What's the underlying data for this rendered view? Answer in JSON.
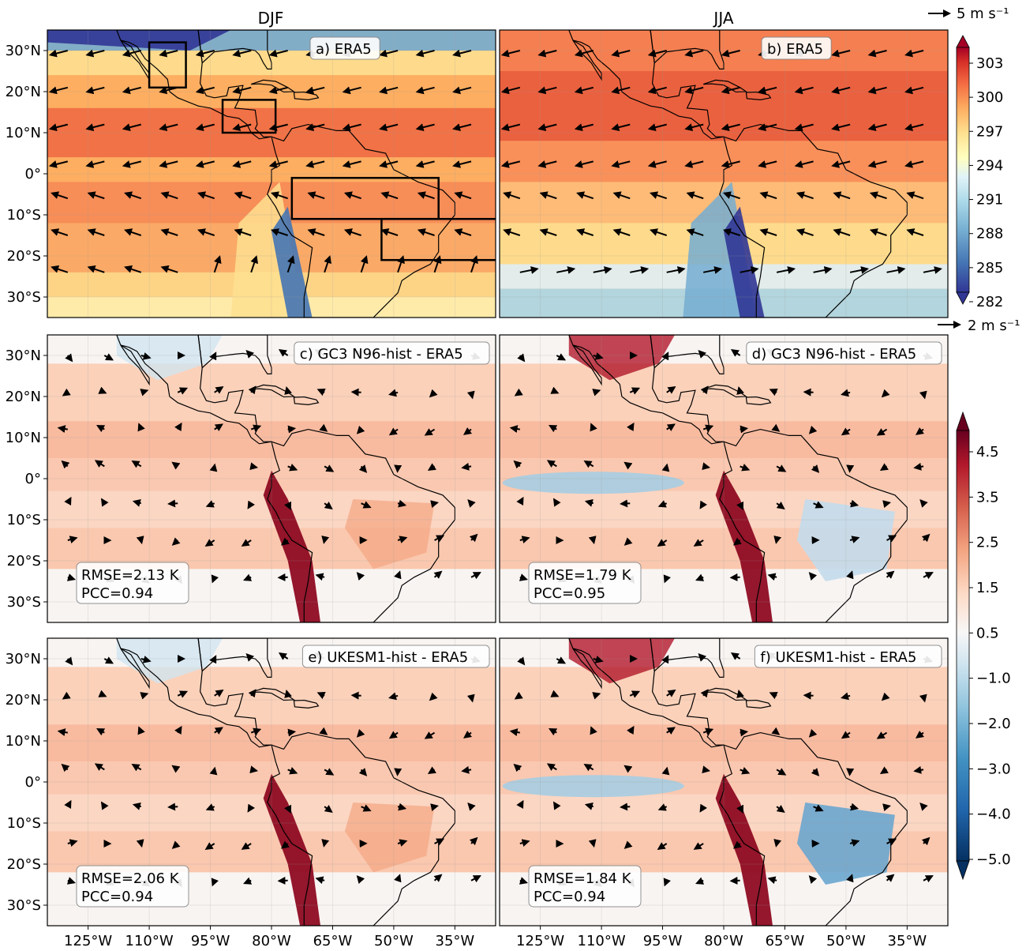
{
  "chart_data": {
    "type": "heatmap",
    "columns": [
      "DJF",
      "JJA"
    ],
    "y_ticks": [
      "30°N",
      "20°N",
      "10°N",
      "0°",
      "10°S",
      "20°S",
      "30°S"
    ],
    "x_ticks": [
      "125°W",
      "110°W",
      "95°W",
      "80°W",
      "65°W",
      "50°W",
      "35°W"
    ],
    "x_range": [
      -135,
      -25
    ],
    "y_range": [
      -35,
      35
    ],
    "panels": [
      {
        "label": "a) ERA5",
        "column": "DJF",
        "row": 1
      },
      {
        "label": "b) ERA5",
        "column": "JJA",
        "row": 1
      },
      {
        "label": "c) GC3 N96-hist - ERA5",
        "column": "DJF",
        "row": 2,
        "rmse": "RMSE=2.13 K",
        "pcc": "PCC=0.94"
      },
      {
        "label": "d) GC3 N96-hist - ERA5",
        "column": "JJA",
        "row": 2,
        "rmse": "RMSE=1.79 K",
        "pcc": "PCC=0.95"
      },
      {
        "label": "e) UKESM1-hist - ERA5",
        "column": "DJF",
        "row": 3,
        "rmse": "RMSE=2.06 K",
        "pcc": "PCC=0.94"
      },
      {
        "label": "f) UKESM1-hist - ERA5",
        "column": "JJA",
        "row": 3,
        "rmse": "RMSE=1.84 K",
        "pcc": "PCC=0.94"
      }
    ],
    "colorbar_top": {
      "ticks": [
        "303",
        "300",
        "297",
        "294",
        "291",
        "288",
        "285",
        "282"
      ],
      "colormap": "RdYlBu_r",
      "range": [
        282,
        304.5
      ],
      "extend": "both"
    },
    "colorbar_bottom": {
      "ticks": [
        "4.5",
        "3.5",
        "2.5",
        "1.5",
        "0.5",
        "−1.0",
        "−2.0",
        "−3.0",
        "−4.0",
        "−5.0"
      ],
      "colormap": "RdBu_r",
      "extend": "both"
    },
    "quiver_keys": [
      {
        "value": 5,
        "label": "5 m s⁻¹",
        "applies_to": "row 1"
      },
      {
        "value": 2,
        "label": "2 m s⁻¹",
        "applies_to": "rows 2-3"
      }
    ],
    "boxes_panel_a": [
      {
        "lon": [
          -110,
          -101
        ],
        "lat": [
          21,
          32
        ]
      },
      {
        "lon": [
          -92,
          -79
        ],
        "lat": [
          10,
          18
        ]
      },
      {
        "lon": [
          -75,
          -39
        ],
        "lat": [
          -11,
          -1
        ]
      },
      {
        "lon": [
          -53,
          -24
        ],
        "lat": [
          -21,
          -11
        ]
      }
    ]
  }
}
